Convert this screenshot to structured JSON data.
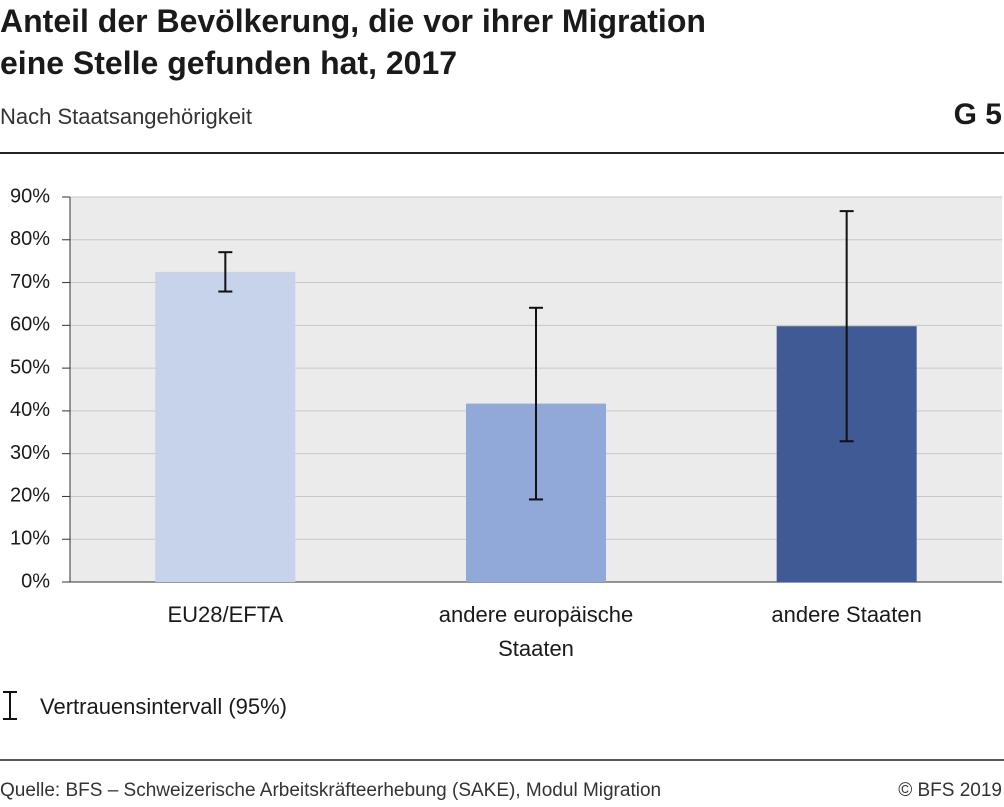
{
  "chart_data": {
    "type": "bar",
    "title": "Anteil der Bevölkerung, die vor ihrer Migration\neine Stelle gefunden hat, 2017",
    "subtitle": "Nach Staatsangehörigkeit",
    "chart_number": "G 5",
    "categories": [
      "EU28/EFTA",
      "andere europäische\nStaaten",
      "andere Staaten"
    ],
    "values": [
      72.5,
      41.7,
      59.8
    ],
    "errors": [
      4.6,
      22.4,
      26.9
    ],
    "colors": [
      "#c6d3eb",
      "#91a9d8",
      "#3f5a94"
    ],
    "error_legend": "Vertrauensintervall (95%)",
    "ylim": [
      0,
      90
    ],
    "yticks": [
      {
        "value": 0,
        "label": "0%"
      },
      {
        "value": 10,
        "label": "10%"
      },
      {
        "value": 20,
        "label": "20%"
      },
      {
        "value": 30,
        "label": "30%"
      },
      {
        "value": 40,
        "label": "40%"
      },
      {
        "value": 50,
        "label": "50%"
      },
      {
        "value": 60,
        "label": "60%"
      },
      {
        "value": 70,
        "label": "70%"
      },
      {
        "value": 80,
        "label": "80%"
      },
      {
        "value": 90,
        "label": "90%"
      }
    ],
    "grid": true,
    "source": "Quelle: BFS – Schweizerische Arbeitskräfteerhebung (SAKE), Modul Migration",
    "copyright": "© BFS 2019"
  }
}
